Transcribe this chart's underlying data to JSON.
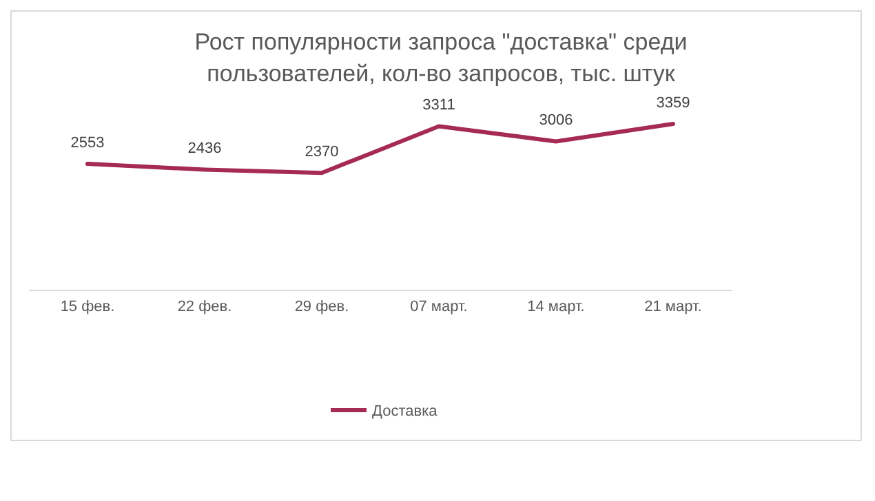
{
  "chart_data": {
    "type": "line",
    "title": "Рост популярности запроса \"доставка\" среди пользователей, кол-во запросов, тыс. штук",
    "categories": [
      "15 фев.",
      "22 фев.",
      "29 фев.",
      "07 март.",
      "14 март.",
      "21 март."
    ],
    "series": [
      {
        "name": "Доставка",
        "color": "#a52a55",
        "values": [
          2553,
          2436,
          2370,
          3311,
          3006,
          3359
        ]
      }
    ],
    "tick_labels": "x",
    "data_labels": true,
    "legend": "bottom",
    "marker": "none",
    "line_style": "solid",
    "grid": false
  }
}
